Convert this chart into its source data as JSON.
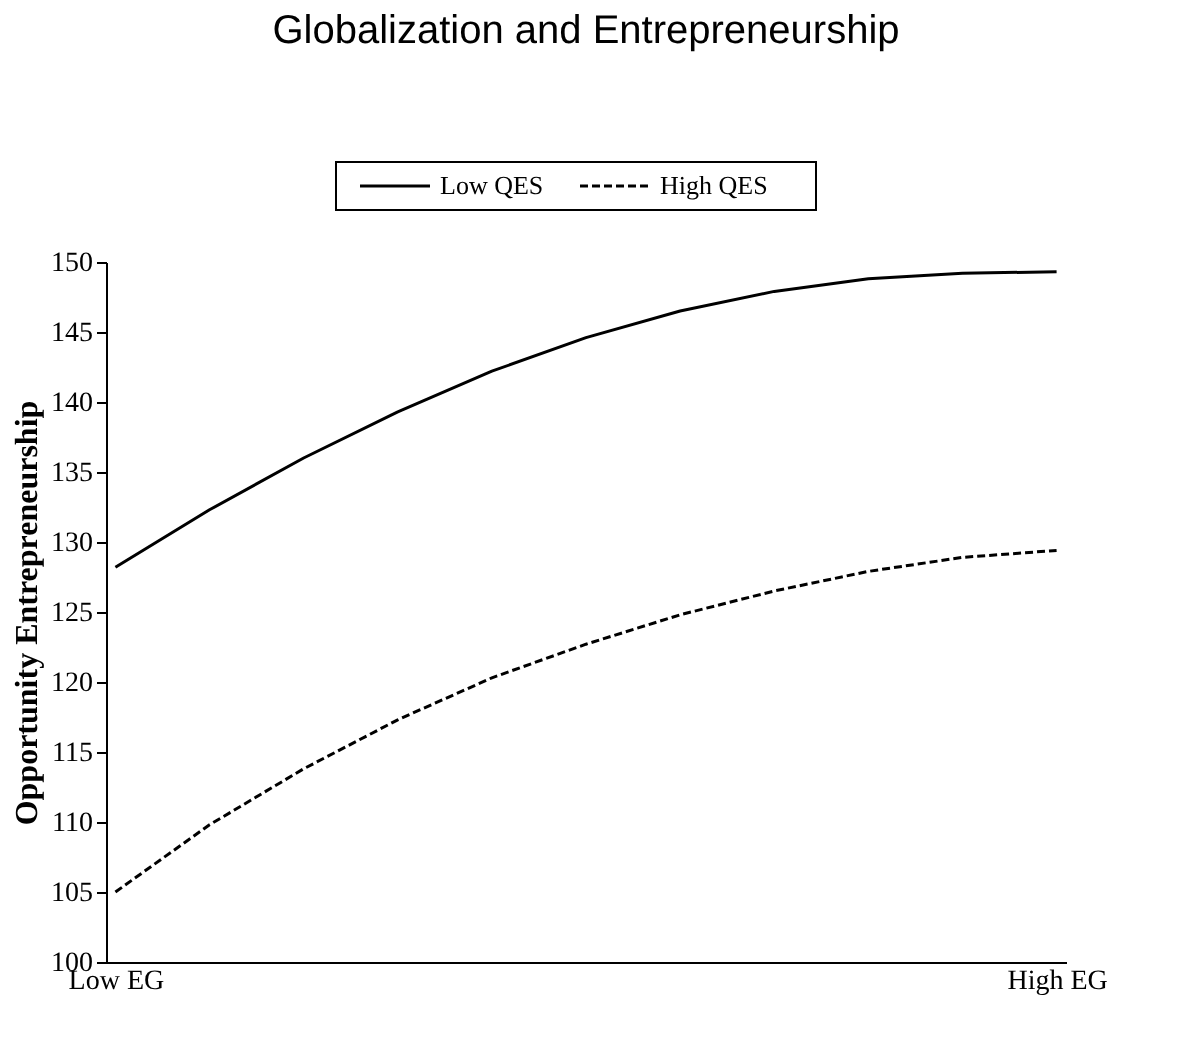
{
  "chart_data": {
    "type": "line",
    "title": "Globalization and Entrepreneurship",
    "ylabel": "Opportunity Entrepreneurship",
    "categories": [
      "Low EG",
      null,
      null,
      null,
      null,
      null,
      null,
      null,
      null,
      null,
      "High EG"
    ],
    "series": [
      {
        "name": "Low QES",
        "color": "#000000",
        "line_style": "solid",
        "values": [
          128.2,
          132.3,
          136.0,
          139.3,
          142.2,
          144.6,
          146.5,
          147.9,
          148.8,
          149.2,
          149.3
        ]
      },
      {
        "name": "High QES",
        "color": "#000000",
        "line_style": "dashed",
        "values": [
          105.0,
          109.8,
          113.8,
          117.3,
          120.3,
          122.7,
          124.8,
          126.5,
          127.9,
          128.9,
          129.4
        ]
      }
    ],
    "ylim": [
      100,
      150
    ],
    "yticks": [
      100,
      105,
      110,
      115,
      120,
      125,
      130,
      135,
      140,
      145,
      150
    ],
    "grid": false,
    "legend": "top",
    "marker": "none"
  }
}
